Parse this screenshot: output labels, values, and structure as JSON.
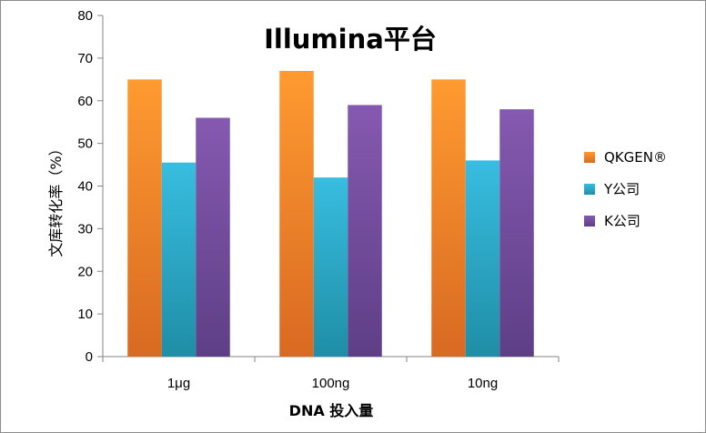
{
  "chart_data": {
    "type": "bar",
    "title": "Illumina平台",
    "xlabel": "DNA 投入量",
    "ylabel": "文库转化率（%）",
    "categories": [
      "1μg",
      "100ng",
      "10ng"
    ],
    "ylim": [
      0,
      80
    ],
    "yticks": [
      "0",
      "10",
      "20",
      "30",
      "40",
      "50",
      "60",
      "70",
      "80"
    ],
    "grid": false,
    "legend_position": "right",
    "series": [
      {
        "name": "QKGEN®",
        "values": [
          65,
          67,
          65
        ],
        "color": "#f5932a"
      },
      {
        "name": "Y公司",
        "values": [
          45.5,
          42,
          46
        ],
        "color": "#2fb3d6"
      },
      {
        "name": "K公司",
        "values": [
          56,
          59,
          58
        ],
        "color": "#7f56a8"
      }
    ]
  }
}
